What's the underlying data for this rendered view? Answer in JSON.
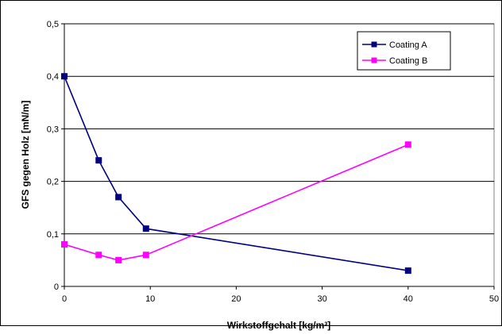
{
  "chart_data": {
    "type": "line",
    "title": "",
    "xlabel": "Wirkstoffgehalt [kg/m³]",
    "ylabel": "GFS gegen Holz [mN/m]",
    "xlim": [
      0,
      50
    ],
    "ylim": [
      0,
      0.5
    ],
    "x_ticks": [
      "0",
      "10",
      "20",
      "30",
      "40",
      "50"
    ],
    "y_ticks": [
      "0",
      "0,1",
      "0,2",
      "0,3",
      "0,4",
      "0,5"
    ],
    "grid": "horizontal",
    "legend_position": "top-right",
    "series": [
      {
        "name": "Coating A",
        "color": "#000080",
        "marker": "square",
        "x": [
          0,
          4,
          6.3,
          9.5,
          40
        ],
        "y": [
          0.4,
          0.24,
          0.17,
          0.11,
          0.03
        ]
      },
      {
        "name": "Coating B",
        "color": "#ff00ff",
        "marker": "square",
        "x": [
          0,
          4,
          6.3,
          9.5,
          40
        ],
        "y": [
          0.08,
          0.06,
          0.05,
          0.06,
          0.27
        ]
      }
    ]
  }
}
